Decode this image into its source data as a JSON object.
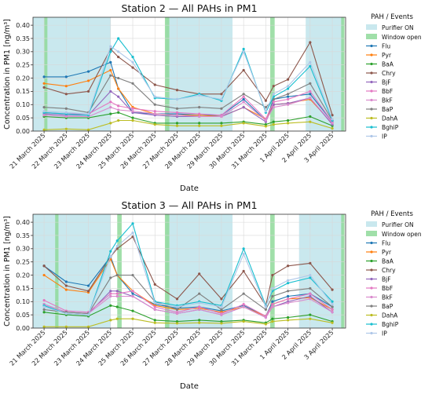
{
  "figure": {
    "legend_title": "PAH / Events",
    "events": {
      "purifier_label": "Purifier ON",
      "window_label": "Window open"
    },
    "colors": {
      "purifier": "#c9e8ee",
      "window": "#8fd99a",
      "grid": "#d8d8d8",
      "axis": "#333333"
    }
  },
  "chart_data": [
    {
      "type": "line",
      "title": "Station 2 — All PAHs in PM1",
      "xlabel": "Date",
      "ylabel": "Concentration in PM1 [ng/m³]",
      "categories": [
        "21 March 2025",
        "22 March 2025",
        "23 March 2025",
        "24 March 2025",
        "25 March 2025",
        "26 March 2025",
        "27 March 2025",
        "28 March 2025",
        "29 March 2025",
        "30 March 2025",
        "31 March 2025",
        "1 April 2025",
        "2 April 2025",
        "3 April 2025"
      ],
      "x": [
        0,
        1,
        2,
        3,
        3.35,
        4,
        5,
        6,
        7,
        8,
        9,
        10,
        10.35,
        11,
        12,
        13
      ],
      "x_tick_positions": [
        0,
        1,
        2,
        3,
        4,
        5,
        6,
        7,
        8,
        9,
        10,
        11,
        12,
        13
      ],
      "ylim": [
        0,
        0.43
      ],
      "yticks": [
        0.0,
        0.05,
        0.1,
        0.15,
        0.2,
        0.25,
        0.3,
        0.35,
        0.4
      ],
      "grid": true,
      "legend_position": "outside-right",
      "purifier_spans": [
        [
          -0.5,
          3.0
        ],
        [
          5.5,
          8.5
        ],
        [
          11.8,
          13.5
        ]
      ],
      "window_spans": [
        [
          0.0,
          0.15
        ],
        [
          5.45,
          5.65
        ],
        [
          10.2,
          10.4
        ],
        [
          13.4,
          13.55
        ]
      ],
      "series": [
        {
          "name": "Flu",
          "color": "#1f77b4",
          "values": [
            0.205,
            0.205,
            0.225,
            0.26,
            0.16,
            0.07,
            0.065,
            0.065,
            0.06,
            0.06,
            0.12,
            0.04,
            0.12,
            0.13,
            0.14,
            0.035
          ]
        },
        {
          "name": "Pyr",
          "color": "#ff7f0e",
          "values": [
            0.18,
            0.17,
            0.19,
            0.23,
            0.16,
            0.09,
            0.065,
            0.06,
            0.06,
            0.055,
            0.09,
            0.045,
            0.1,
            0.105,
            0.12,
            0.03
          ]
        },
        {
          "name": "BaA",
          "color": "#2ca02c",
          "values": [
            0.055,
            0.05,
            0.05,
            0.065,
            0.07,
            0.05,
            0.03,
            0.03,
            0.03,
            0.03,
            0.035,
            0.025,
            0.035,
            0.04,
            0.055,
            0.02
          ]
        },
        {
          "name": "Chry",
          "color": "#8c564b",
          "values": [
            0.165,
            0.14,
            0.15,
            0.31,
            0.28,
            0.24,
            0.175,
            0.155,
            0.14,
            0.14,
            0.23,
            0.115,
            0.17,
            0.195,
            0.335,
            0.06
          ]
        },
        {
          "name": "BjF",
          "color": "#9467bd",
          "values": [
            0.065,
            0.06,
            0.06,
            0.15,
            0.13,
            0.07,
            0.06,
            0.055,
            0.055,
            0.055,
            0.09,
            0.035,
            0.1,
            0.105,
            0.125,
            0.025
          ]
        },
        {
          "name": "BbF",
          "color": "#e377c2",
          "values": [
            0.07,
            0.065,
            0.065,
            0.11,
            0.095,
            0.085,
            0.075,
            0.07,
            0.065,
            0.06,
            0.13,
            0.045,
            0.11,
            0.12,
            0.15,
            0.035
          ]
        },
        {
          "name": "BkF",
          "color": "#d98acd",
          "values": [
            0.06,
            0.055,
            0.055,
            0.09,
            0.08,
            0.075,
            0.065,
            0.06,
            0.055,
            0.055,
            0.11,
            0.04,
            0.09,
            0.1,
            0.125,
            0.03
          ]
        },
        {
          "name": "BaP",
          "color": "#7f7f7f",
          "values": [
            0.09,
            0.085,
            0.07,
            0.21,
            0.2,
            0.18,
            0.1,
            0.085,
            0.09,
            0.085,
            0.14,
            0.09,
            0.12,
            0.14,
            0.18,
            0.04
          ]
        },
        {
          "name": "DahA",
          "color": "#bcbd22",
          "values": [
            0.005,
            0.008,
            0.005,
            0.03,
            0.04,
            0.04,
            0.025,
            0.02,
            0.02,
            0.02,
            0.03,
            0.018,
            0.025,
            0.03,
            0.035,
            0.01
          ]
        },
        {
          "name": "BghiP",
          "color": "#17becf",
          "values": [
            0.07,
            0.065,
            0.06,
            0.3,
            0.35,
            0.28,
            0.125,
            0.12,
            0.14,
            0.115,
            0.31,
            0.07,
            0.13,
            0.16,
            0.245,
            0.04
          ]
        },
        {
          "name": "IP",
          "color": "#aec7e8",
          "values": [
            0.075,
            0.07,
            0.065,
            0.32,
            0.3,
            0.26,
            0.13,
            0.12,
            0.135,
            0.12,
            0.3,
            0.075,
            0.14,
            0.17,
            0.26,
            0.045
          ]
        }
      ]
    },
    {
      "type": "line",
      "title": "Station 3 — All PAHs in PM1",
      "xlabel": "Date",
      "ylabel": "Concentration in PM1 [ng/m³]",
      "categories": [
        "21 March 2025",
        "22 March 2025",
        "23 March 2025",
        "24 March 2025",
        "25 March 2025",
        "26 March 2025",
        "27 March 2025",
        "28 March 2025",
        "29 March 2025",
        "30 March 2025",
        "31 March 2025",
        "1 April 2025",
        "2 April 2025",
        "3 April 2025"
      ],
      "x": [
        0,
        1,
        2,
        3,
        3.3,
        4,
        5,
        6,
        7,
        8,
        9,
        10,
        10.3,
        11,
        12,
        13
      ],
      "x_tick_positions": [
        0,
        1,
        2,
        3,
        4,
        5,
        6,
        7,
        8,
        9,
        10,
        11,
        12,
        13
      ],
      "ylim": [
        0,
        0.43
      ],
      "yticks": [
        0.0,
        0.05,
        0.1,
        0.15,
        0.2,
        0.25,
        0.3,
        0.35,
        0.4
      ],
      "grid": true,
      "legend_position": "outside-right",
      "purifier_spans": [
        [
          -0.5,
          3.0
        ],
        [
          5.5,
          8.5
        ],
        [
          11.5,
          13.5
        ]
      ],
      "window_spans": [
        [
          0.5,
          0.65
        ],
        [
          3.3,
          3.5
        ],
        [
          5.45,
          5.65
        ],
        [
          10.2,
          10.4
        ],
        [
          13.4,
          13.55
        ]
      ],
      "series": [
        {
          "name": "Flu",
          "color": "#1f77b4",
          "values": [
            0.235,
            0.175,
            0.16,
            0.27,
            0.2,
            0.13,
            0.09,
            0.075,
            0.08,
            0.065,
            0.085,
            0.045,
            0.1,
            0.12,
            0.13,
            0.08
          ]
        },
        {
          "name": "Pyr",
          "color": "#ff7f0e",
          "values": [
            0.2,
            0.145,
            0.135,
            0.26,
            0.2,
            0.14,
            0.085,
            0.07,
            0.075,
            0.06,
            0.08,
            0.045,
            0.09,
            0.11,
            0.115,
            0.07
          ]
        },
        {
          "name": "BaA",
          "color": "#2ca02c",
          "values": [
            0.06,
            0.05,
            0.045,
            0.085,
            0.08,
            0.065,
            0.03,
            0.025,
            0.03,
            0.025,
            0.03,
            0.02,
            0.035,
            0.04,
            0.05,
            0.025
          ]
        },
        {
          "name": "Chry",
          "color": "#8c564b",
          "values": [
            0.235,
            0.16,
            0.14,
            0.27,
            0.3,
            0.345,
            0.165,
            0.11,
            0.205,
            0.11,
            0.215,
            0.085,
            0.2,
            0.235,
            0.245,
            0.145
          ]
        },
        {
          "name": "BjF",
          "color": "#9467bd",
          "values": [
            0.09,
            0.06,
            0.055,
            0.14,
            0.14,
            0.12,
            0.07,
            0.055,
            0.07,
            0.05,
            0.08,
            0.04,
            0.08,
            0.1,
            0.12,
            0.06
          ]
        },
        {
          "name": "BbF",
          "color": "#e377c2",
          "values": [
            0.105,
            0.065,
            0.06,
            0.13,
            0.13,
            0.14,
            0.08,
            0.06,
            0.08,
            0.055,
            0.09,
            0.045,
            0.09,
            0.11,
            0.13,
            0.07
          ]
        },
        {
          "name": "BkF",
          "color": "#d98acd",
          "values": [
            0.09,
            0.06,
            0.055,
            0.12,
            0.12,
            0.12,
            0.07,
            0.055,
            0.07,
            0.05,
            0.08,
            0.04,
            0.08,
            0.095,
            0.11,
            0.06
          ]
        },
        {
          "name": "BaP",
          "color": "#7f7f7f",
          "values": [
            0.07,
            0.06,
            0.055,
            0.19,
            0.2,
            0.2,
            0.1,
            0.07,
            0.13,
            0.07,
            0.13,
            0.07,
            0.12,
            0.14,
            0.15,
            0.08
          ]
        },
        {
          "name": "DahA",
          "color": "#bcbd22",
          "values": [
            0.005,
            0.005,
            0.005,
            0.03,
            0.035,
            0.035,
            0.02,
            0.018,
            0.02,
            0.018,
            0.025,
            0.015,
            0.025,
            0.03,
            0.035,
            0.02
          ]
        },
        {
          "name": "BghiP",
          "color": "#17becf",
          "values": [
            0.085,
            0.055,
            0.05,
            0.29,
            0.33,
            0.395,
            0.1,
            0.085,
            0.1,
            0.085,
            0.3,
            0.085,
            0.14,
            0.17,
            0.19,
            0.1
          ]
        },
        {
          "name": "IP",
          "color": "#aec7e8",
          "values": [
            0.08,
            0.055,
            0.05,
            0.27,
            0.31,
            0.36,
            0.095,
            0.08,
            0.095,
            0.08,
            0.28,
            0.08,
            0.15,
            0.18,
            0.2,
            0.09
          ]
        }
      ]
    }
  ]
}
